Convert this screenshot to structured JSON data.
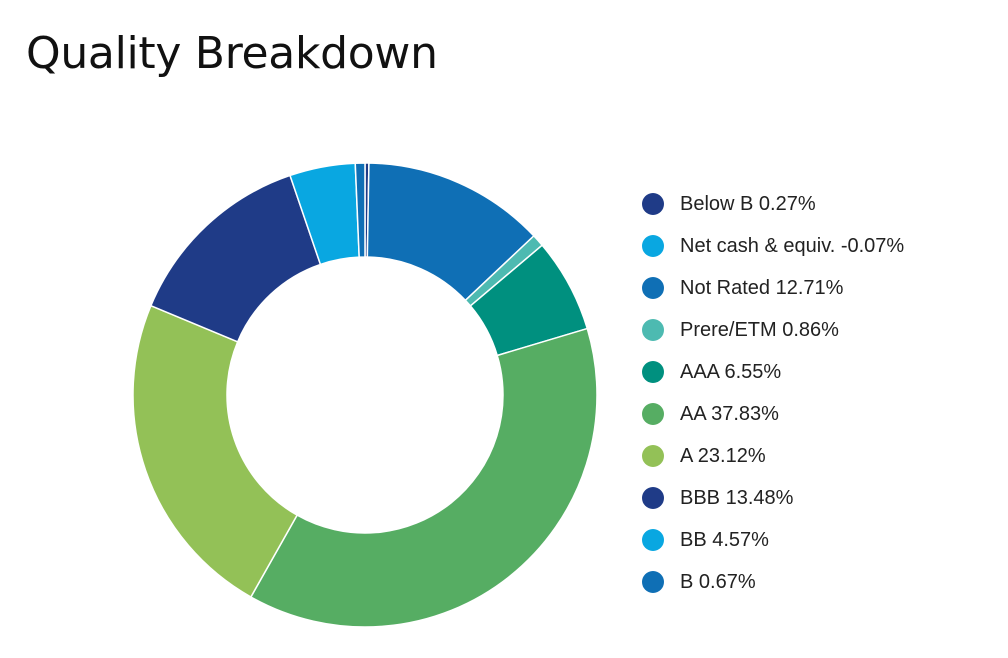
{
  "header": {
    "title": "Quality Breakdown"
  },
  "chart_data": {
    "type": "pie",
    "variant": "donut",
    "title": "Quality Breakdown",
    "start": "top",
    "direction": "clockwise",
    "legend_position": "right",
    "slices": [
      {
        "name": "Below B",
        "label": "Below B 0.27%",
        "value": 0.27,
        "color": "#1f3b87"
      },
      {
        "name": "Net cash & equiv.",
        "label": "Net cash & equiv. -0.07%",
        "value": -0.07,
        "color": "#09a7e1"
      },
      {
        "name": "Not Rated",
        "label": "Not Rated 12.71%",
        "value": 12.71,
        "color": "#0f6fb5"
      },
      {
        "name": "Prere/ETM",
        "label": "Prere/ETM 0.86%",
        "value": 0.86,
        "color": "#4dbab1"
      },
      {
        "name": "AAA",
        "label": "AAA 6.55%",
        "value": 6.55,
        "color": "#00907f"
      },
      {
        "name": "AA",
        "label": "AA 37.83%",
        "value": 37.83,
        "color": "#56ad63"
      },
      {
        "name": "A",
        "label": "A 23.12%",
        "value": 23.12,
        "color": "#93c157"
      },
      {
        "name": "BBB",
        "label": "BBB 13.48%",
        "value": 13.48,
        "color": "#1f3b87"
      },
      {
        "name": "BB",
        "label": "BB 4.57%",
        "value": 4.57,
        "color": "#09a7e1"
      },
      {
        "name": "B",
        "label": "B 0.67%",
        "value": 0.67,
        "color": "#0f6fb5"
      }
    ]
  }
}
